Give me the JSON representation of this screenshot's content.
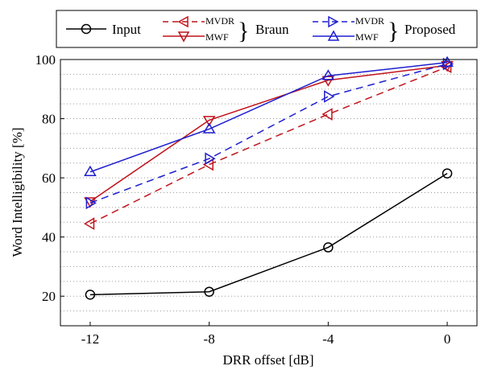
{
  "chart_data": {
    "type": "line",
    "xlabel": "DRR offset [dB]",
    "ylabel": "Word Intelligibility [%]",
    "x": [
      -12,
      -8,
      -4,
      0
    ],
    "x_tick_labels": [
      "-12",
      "-8",
      "-4",
      "0"
    ],
    "xlim": [
      -13,
      1
    ],
    "ylim": [
      10,
      100
    ],
    "y_ticks": [
      20,
      40,
      60,
      80,
      100
    ],
    "y_tick_labels": [
      "20",
      "40",
      "60",
      "80",
      "100"
    ],
    "grid": "horizontal dotted minor lines",
    "legend_position": "top, above plot",
    "legend": {
      "input_label": "Input",
      "braun_group_label": "Braun",
      "proposed_group_label": "Proposed",
      "mvdr_label": "MVDR",
      "mwf_label": "MWF"
    },
    "series": [
      {
        "name": "Input",
        "color": "#000000",
        "dash": "solid",
        "marker": "circle",
        "values": [
          20.5,
          21.5,
          36.5,
          61.5
        ]
      },
      {
        "name": "MVDR Braun",
        "color": "#c0141b",
        "dash": "dashed",
        "marker": "triangle-left",
        "values": [
          44.5,
          64.5,
          81.5,
          97.5
        ]
      },
      {
        "name": "MWF Braun",
        "color": "#c0141b",
        "dash": "solid",
        "marker": "triangle-down",
        "values": [
          52,
          79.5,
          93,
          98
        ]
      },
      {
        "name": "MVDR Proposed",
        "color": "#1f1fd0",
        "dash": "dashed",
        "marker": "triangle-right",
        "values": [
          51.5,
          66.5,
          87.5,
          98.5
        ]
      },
      {
        "name": "MWF Proposed",
        "color": "#1f1fd0",
        "dash": "solid",
        "marker": "triangle-up",
        "values": [
          62,
          76.5,
          94.5,
          99
        ]
      }
    ]
  }
}
